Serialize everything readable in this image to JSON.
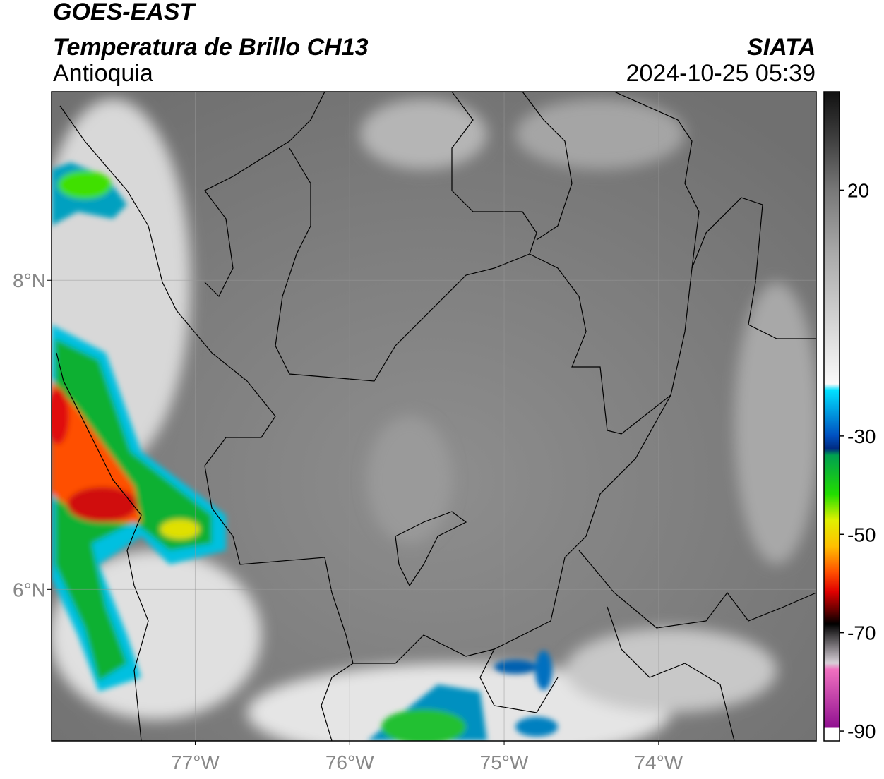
{
  "header": {
    "title": "GOES-EAST",
    "subtitle": "Temperatura de Brillo CH13",
    "region": "Antioquia",
    "source": "SIATA",
    "datetime": "2024-10-25 05:39"
  },
  "map": {
    "xlim": [
      -77.93,
      -72.98
    ],
    "ylim": [
      5.02,
      9.22
    ],
    "xticks": [
      {
        "value": -77,
        "label": "77°W"
      },
      {
        "value": -76,
        "label": "76°W"
      },
      {
        "value": -75,
        "label": "75°W"
      },
      {
        "value": -74,
        "label": "74°W"
      }
    ],
    "yticks": [
      {
        "value": 8,
        "label": "8°N"
      },
      {
        "value": 6,
        "label": "6°N"
      }
    ],
    "grid": true
  },
  "colorbar": {
    "ylim": [
      -92,
      40
    ],
    "yticks": [
      -90,
      -70,
      -50,
      -30,
      20
    ]
  }
}
